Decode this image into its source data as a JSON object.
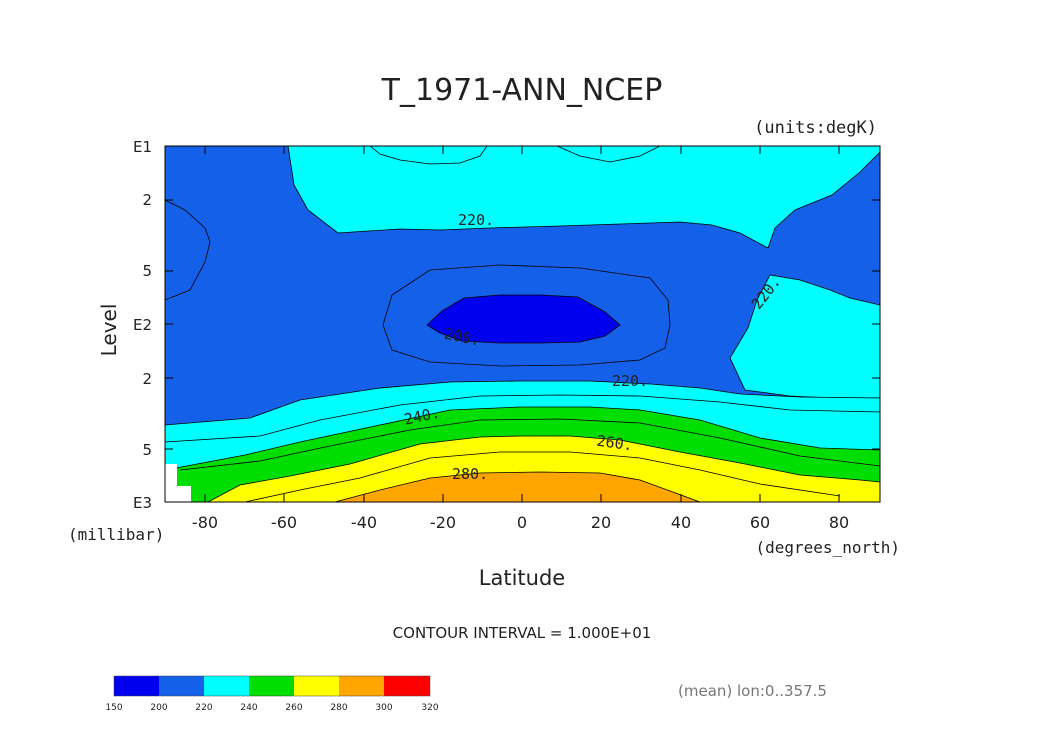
{
  "chart_data": {
    "type": "contour",
    "title": "T_1971-ANN_NCEP",
    "units_label": "(units:degK)",
    "xlabel": "Latitude",
    "xunits": "(degrees_north)",
    "ylabel": "Level",
    "yunits": "(millibar)",
    "xlim": [
      -90,
      90
    ],
    "ylim_mb": [
      1000,
      10
    ],
    "y_log_scale": true,
    "x_ticks": [
      "-80",
      "-60",
      "-40",
      "-20",
      "0",
      "20",
      "40",
      "60",
      "80"
    ],
    "y_ticks": [
      {
        "label": "E1",
        "mb": 10
      },
      {
        "label": "2",
        "mb": 20
      },
      {
        "label": "5",
        "mb": 50
      },
      {
        "label": "E2",
        "mb": 100
      },
      {
        "label": "2",
        "mb": 200
      },
      {
        "label": "5",
        "mb": 500
      },
      {
        "label": "E3",
        "mb": 1000
      }
    ],
    "contour_interval_text": "CONTOUR INTERVAL = 1.000E+01",
    "contour_labels": [
      {
        "text": "220.",
        "lat": -12,
        "mb": 22
      },
      {
        "text": "220.",
        "lat": 63,
        "mb": 58
      },
      {
        "text": "200.",
        "lat": -15,
        "mb": 110
      },
      {
        "text": "220.",
        "lat": 27,
        "mb": 200
      },
      {
        "text": "240.",
        "lat": -25,
        "mb": 285
      },
      {
        "text": "260.",
        "lat": 23,
        "mb": 420
      },
      {
        "text": "280.",
        "lat": -13,
        "mb": 780
      }
    ],
    "colorbar": {
      "levels": [
        "150",
        "200",
        "220",
        "240",
        "260",
        "280",
        "300",
        "320"
      ],
      "colors": [
        "#0000ee",
        "#1560e8",
        "#00ffff",
        "#00dd00",
        "#ffff00",
        "#ffa500",
        "#ff0000"
      ]
    },
    "footer_text": "(mean) lon:0..357.5"
  }
}
